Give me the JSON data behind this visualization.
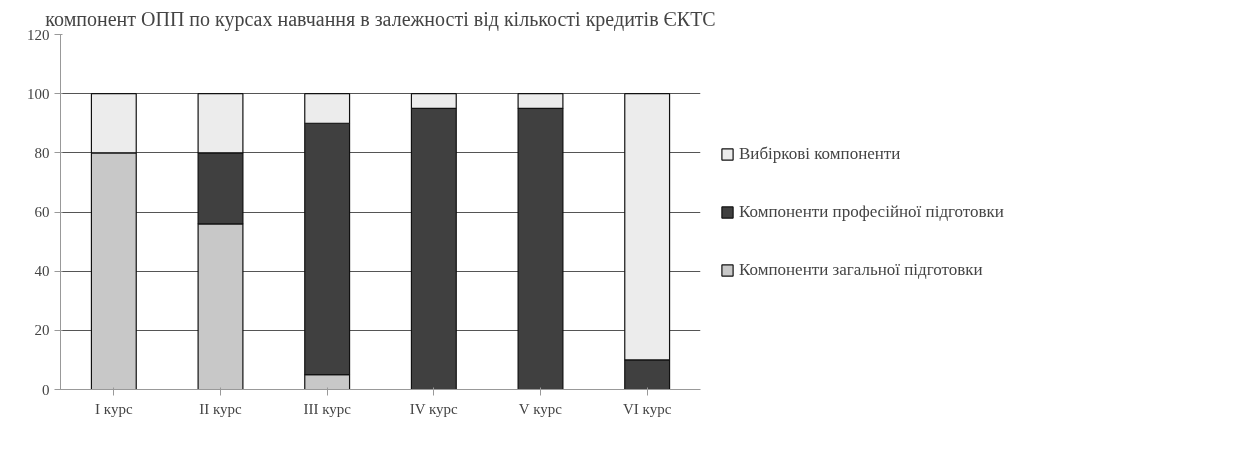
{
  "chart_data": {
    "type": "bar",
    "title": "компонент ОПП по курсах навчання в залежності від кількості кредитів ЄКТС",
    "categories": [
      "I курс",
      "II курс",
      "III курс",
      "IV курс",
      "V курс",
      "VI курс"
    ],
    "stacked": true,
    "series": [
      {
        "name": "Компоненти загальної підготовки",
        "color": "#c8c8c8",
        "values": [
          80,
          56,
          5,
          0,
          0,
          0
        ]
      },
      {
        "name": "Компоненти професійної підготовки",
        "color": "#404040",
        "values": [
          0,
          24,
          85,
          95,
          95,
          10
        ]
      },
      {
        "name": "Вибіркові компоненти",
        "color": "#ececec",
        "values": [
          20,
          20,
          10,
          5,
          5,
          90
        ]
      }
    ],
    "ylim": [
      0,
      120
    ],
    "yticks": [
      0,
      20,
      40,
      60,
      80,
      100,
      120
    ],
    "grid": "y",
    "legend": "right"
  }
}
